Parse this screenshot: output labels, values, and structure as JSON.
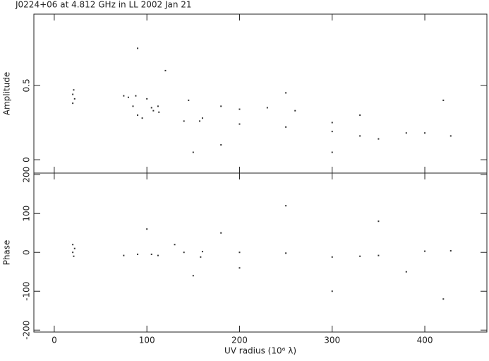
{
  "chart_data": [
    {
      "type": "scatter",
      "title": "J0224+06 at 4.812 GHz in LL  2002 Jan 21",
      "y_label": "Amplitude",
      "color": "#333333",
      "x": [
        20,
        22,
        21,
        20,
        75,
        80,
        85,
        90,
        95,
        88,
        100,
        105,
        107,
        112,
        113,
        140,
        145,
        160,
        157,
        180,
        200,
        230,
        260,
        300,
        200,
        250,
        300,
        330,
        350,
        380,
        400,
        428,
        120,
        180,
        250,
        330,
        420,
        90,
        300,
        150
      ],
      "y": [
        0.44,
        0.41,
        0.47,
        0.38,
        0.43,
        0.42,
        0.36,
        0.3,
        0.28,
        0.43,
        0.41,
        0.35,
        0.33,
        0.36,
        0.32,
        0.26,
        0.4,
        0.28,
        0.26,
        0.36,
        0.34,
        0.35,
        0.33,
        0.25,
        0.24,
        0.22,
        0.19,
        0.16,
        0.14,
        0.18,
        0.18,
        0.16,
        0.6,
        0.1,
        0.45,
        0.3,
        0.4,
        0.75,
        0.05,
        0.05
      ],
      "xlim": [
        -22,
        467
      ],
      "xticks": [
        0,
        100,
        200,
        300,
        400
      ],
      "ylim": [
        -0.09,
        0.98
      ],
      "yticks": [
        0,
        0.5
      ]
    },
    {
      "type": "scatter",
      "x_label": "UV radius  (10⁶ λ)",
      "y_label": "Phase",
      "color": "#333333",
      "x": [
        20,
        21,
        22,
        20,
        75,
        90,
        105,
        112,
        140,
        158,
        160,
        200,
        250,
        300,
        330,
        350,
        400,
        428,
        100,
        150,
        250,
        300,
        350,
        420,
        200,
        180,
        380,
        130
      ],
      "y": [
        0,
        -10,
        10,
        20,
        -8,
        -5,
        -5,
        -8,
        0,
        -12,
        2,
        0,
        -2,
        -12,
        -10,
        -8,
        3,
        4,
        60,
        -60,
        120,
        -100,
        80,
        -120,
        -40,
        50,
        -50,
        20
      ],
      "xlim": [
        -22,
        467
      ],
      "xticks": [
        0,
        100,
        200,
        300,
        400
      ],
      "ylim": [
        -205,
        204
      ],
      "yticks": [
        -200,
        -100,
        0,
        100,
        200
      ]
    }
  ]
}
